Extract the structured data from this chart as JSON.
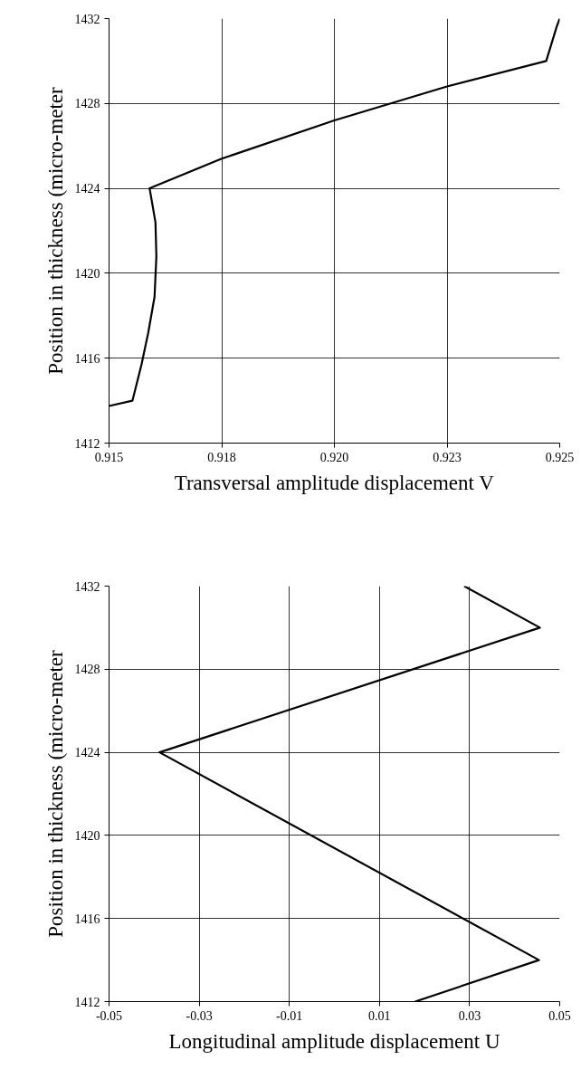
{
  "chart_data": [
    {
      "type": "line",
      "xlabel": "Transversal amplitude displacement V",
      "ylabel": "Position in thickness (micro-meter",
      "x": [
        0.915,
        0.91552,
        0.91572,
        0.91587,
        0.91601,
        0.91605,
        0.91603,
        0.9159,
        0.9175,
        0.92,
        0.9225,
        0.9247,
        0.92493,
        0.925
      ],
      "series": [
        {
          "color": "#000000",
          "values": [
            1413.75,
            1414,
            1415.7,
            1417.2,
            1418.9,
            1420.8,
            1422.4,
            1424,
            1425.4,
            1427.2,
            1428.8,
            1430,
            1431.6,
            1432
          ]
        }
      ],
      "xlim": [
        0.915,
        0.925
      ],
      "ylim": [
        1412,
        1432
      ],
      "xticks": [
        0.915,
        {
          "value": 0.9175,
          "label": "0.918"
        },
        {
          "value": 0.92,
          "label": "0.920"
        },
        {
          "value": 0.9225,
          "label": "0.923"
        },
        0.925
      ],
      "yticks": [
        1412,
        1416,
        1420,
        1424,
        1428,
        1432
      ],
      "grid": true,
      "marker": "none",
      "line_style": "solid"
    },
    {
      "type": "line",
      "xlabel": "Longitudinal amplitude displacement U",
      "ylabel": "Position in thickness (micro-meter",
      "x": [
        0.0179,
        0.0454,
        -0.0388,
        0.0456,
        0.0288
      ],
      "series": [
        {
          "color": "#000000",
          "values": [
            1412,
            1414,
            1424,
            1430,
            1432
          ]
        }
      ],
      "xlim": [
        -0.05,
        0.05
      ],
      "ylim": [
        1412,
        1432
      ],
      "xticks": [
        -0.05,
        -0.03,
        -0.01,
        0.01,
        0.03,
        0.05
      ],
      "yticks": [
        1412,
        1416,
        1420,
        1424,
        1428,
        1432
      ],
      "grid": true,
      "marker": "none",
      "line_style": "solid"
    }
  ]
}
